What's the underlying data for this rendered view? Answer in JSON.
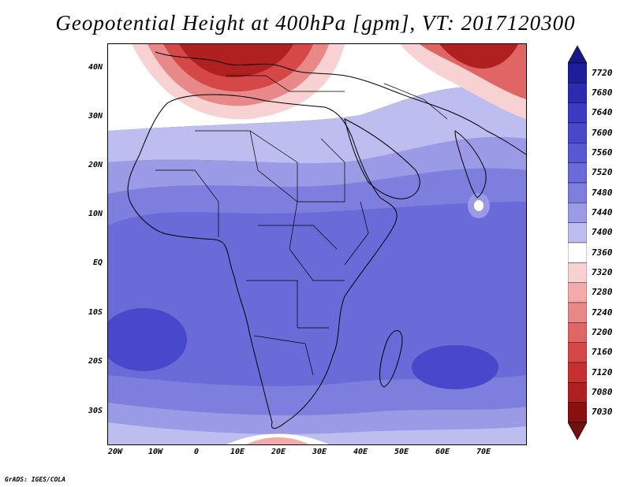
{
  "title": "Geopotential Height at 400hPa [gpm], VT: 2017120300",
  "lat_labels": [
    "40N",
    "30N",
    "20N",
    "10N",
    "EQ",
    "10S",
    "20S",
    "30S"
  ],
  "lon_labels": [
    "20W",
    "10W",
    "0",
    "10E",
    "20E",
    "30E",
    "40E",
    "50E",
    "60E",
    "70E"
  ],
  "colorbar": {
    "labels": [
      "7720",
      "7680",
      "7640",
      "7600",
      "7560",
      "7520",
      "7480",
      "7440",
      "7400",
      "7360",
      "7320",
      "7280",
      "7240",
      "7200",
      "7160",
      "7120",
      "7080",
      "7030"
    ],
    "colors": [
      "#1e1e9a",
      "#2c2cb0",
      "#3a3ac4",
      "#4848cc",
      "#5858d2",
      "#6a6ad8",
      "#7e7edf",
      "#9a9ae6",
      "#bdbdf0",
      "#ffffff",
      "#f8d2d2",
      "#f2aaaa",
      "#e98888",
      "#e06666",
      "#d64848",
      "#c83030",
      "#b02020",
      "#8a1010"
    ],
    "top_arrow_color": "#17178a",
    "bottom_arrow_color": "#701010"
  },
  "credit": "GrADS: IGES/COLA",
  "colors": {
    "ocean_base": "#7070e0",
    "land_outline": "#000000"
  }
}
